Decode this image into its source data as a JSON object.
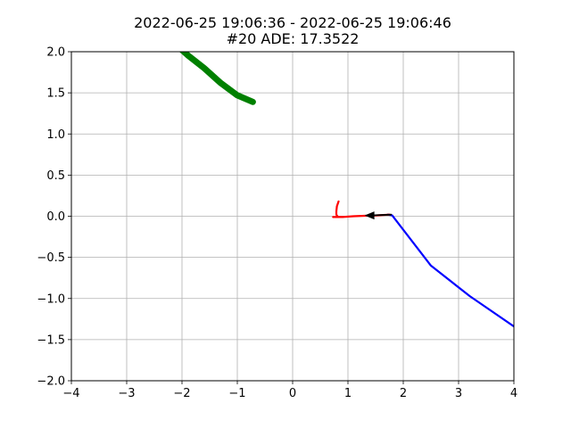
{
  "chart_data": {
    "type": "line",
    "title_line1": "2022-06-25 19:06:36 - 2022-06-25 19:06:46",
    "title_line2": "#20 ADE: 17.3522",
    "xlim": [
      -4,
      4
    ],
    "ylim": [
      -2,
      2
    ],
    "xticks": [
      -4,
      -3,
      -2,
      -1,
      0,
      1,
      2,
      3,
      4
    ],
    "yticks": [
      -2.0,
      -1.5,
      -1.0,
      -0.5,
      0.0,
      0.5,
      1.0,
      1.5,
      2.0
    ],
    "xtick_labels": [
      "−4",
      "−3",
      "−2",
      "−1",
      "0",
      "1",
      "2",
      "3",
      "4"
    ],
    "ytick_labels": [
      "−2.0",
      "−1.5",
      "−1.0",
      "−0.5",
      "0.0",
      "0.5",
      "1.0",
      "1.5",
      "2.0"
    ],
    "grid": true,
    "series": [
      {
        "color": "#008000",
        "points": [
          [
            -2.05,
            2.05
          ],
          [
            -1.9,
            1.96
          ],
          [
            -1.6,
            1.8
          ],
          [
            -1.3,
            1.62
          ],
          [
            -1.0,
            1.47
          ],
          [
            -0.72,
            1.39
          ]
        ]
      },
      {
        "color": "#0000ff",
        "points": [
          [
            1.72,
            0.02
          ],
          [
            1.8,
            0.01
          ],
          [
            2.5,
            -0.6
          ],
          [
            3.2,
            -0.97
          ],
          [
            4.0,
            -1.34
          ]
        ]
      },
      {
        "color": "#ff0000",
        "points": [
          [
            0.83,
            0.18
          ],
          [
            0.8,
            0.12
          ],
          [
            0.79,
            0.06
          ],
          [
            0.79,
            0.02
          ],
          [
            0.82,
            -0.01
          ],
          [
            0.9,
            -0.01
          ],
          [
            1.1,
            0.0
          ],
          [
            1.3,
            0.005
          ],
          [
            1.5,
            0.01
          ],
          [
            1.75,
            0.02
          ]
        ]
      },
      {
        "color": "#000000",
        "points": [
          [
            1.4,
            0.01
          ],
          [
            1.78,
            0.02
          ]
        ]
      },
      {
        "color": "#ff0000",
        "points": [
          [
            0.73,
            -0.01
          ],
          [
            0.9,
            -0.01
          ]
        ]
      }
    ],
    "arrow": {
      "color": "#000000",
      "tip": [
        1.3,
        0.01
      ],
      "direction": "left"
    }
  }
}
